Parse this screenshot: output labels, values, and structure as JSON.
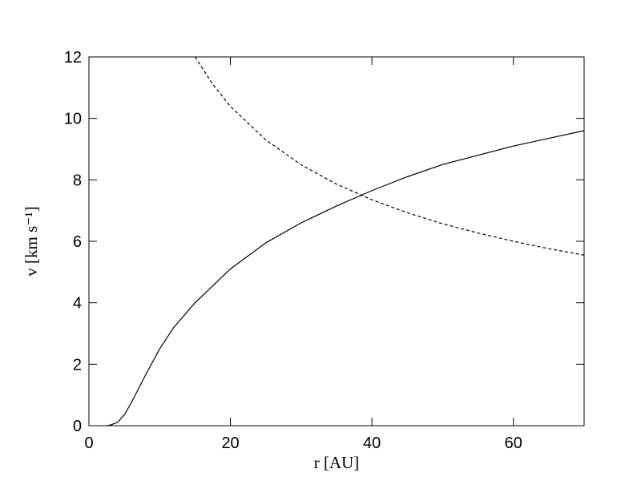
{
  "chart_data": {
    "type": "line",
    "x_label": "r [AU]",
    "y_label": "v [km s⁻¹]",
    "series": [
      {
        "color": "#000000",
        "dash": "solid",
        "x": [
          2.5,
          3,
          4,
          5,
          6,
          7,
          8,
          10,
          12,
          15,
          20,
          25,
          30,
          35,
          40,
          45,
          50,
          55,
          60,
          65,
          70
        ],
        "values": [
          0,
          0.02,
          0.1,
          0.35,
          0.75,
          1.2,
          1.65,
          2.5,
          3.2,
          4.0,
          5.1,
          5.95,
          6.6,
          7.15,
          7.65,
          8.1,
          8.5,
          8.8,
          9.1,
          9.35,
          9.6
        ]
      },
      {
        "color": "#000000",
        "dash": "dashed",
        "x": [
          15,
          17.5,
          20,
          25,
          30,
          35,
          40,
          45,
          50,
          55,
          60,
          65,
          70
        ],
        "values": [
          12,
          11.11,
          10.39,
          9.3,
          8.49,
          7.86,
          7.35,
          6.93,
          6.57,
          6.27,
          6.0,
          5.76,
          5.55
        ]
      }
    ],
    "xlim": [
      0,
      70
    ],
    "xticks": [
      0,
      20,
      40,
      60
    ],
    "ylim": [
      0,
      12
    ],
    "yticks": [
      0,
      2,
      4,
      6,
      8,
      10,
      12
    ]
  }
}
